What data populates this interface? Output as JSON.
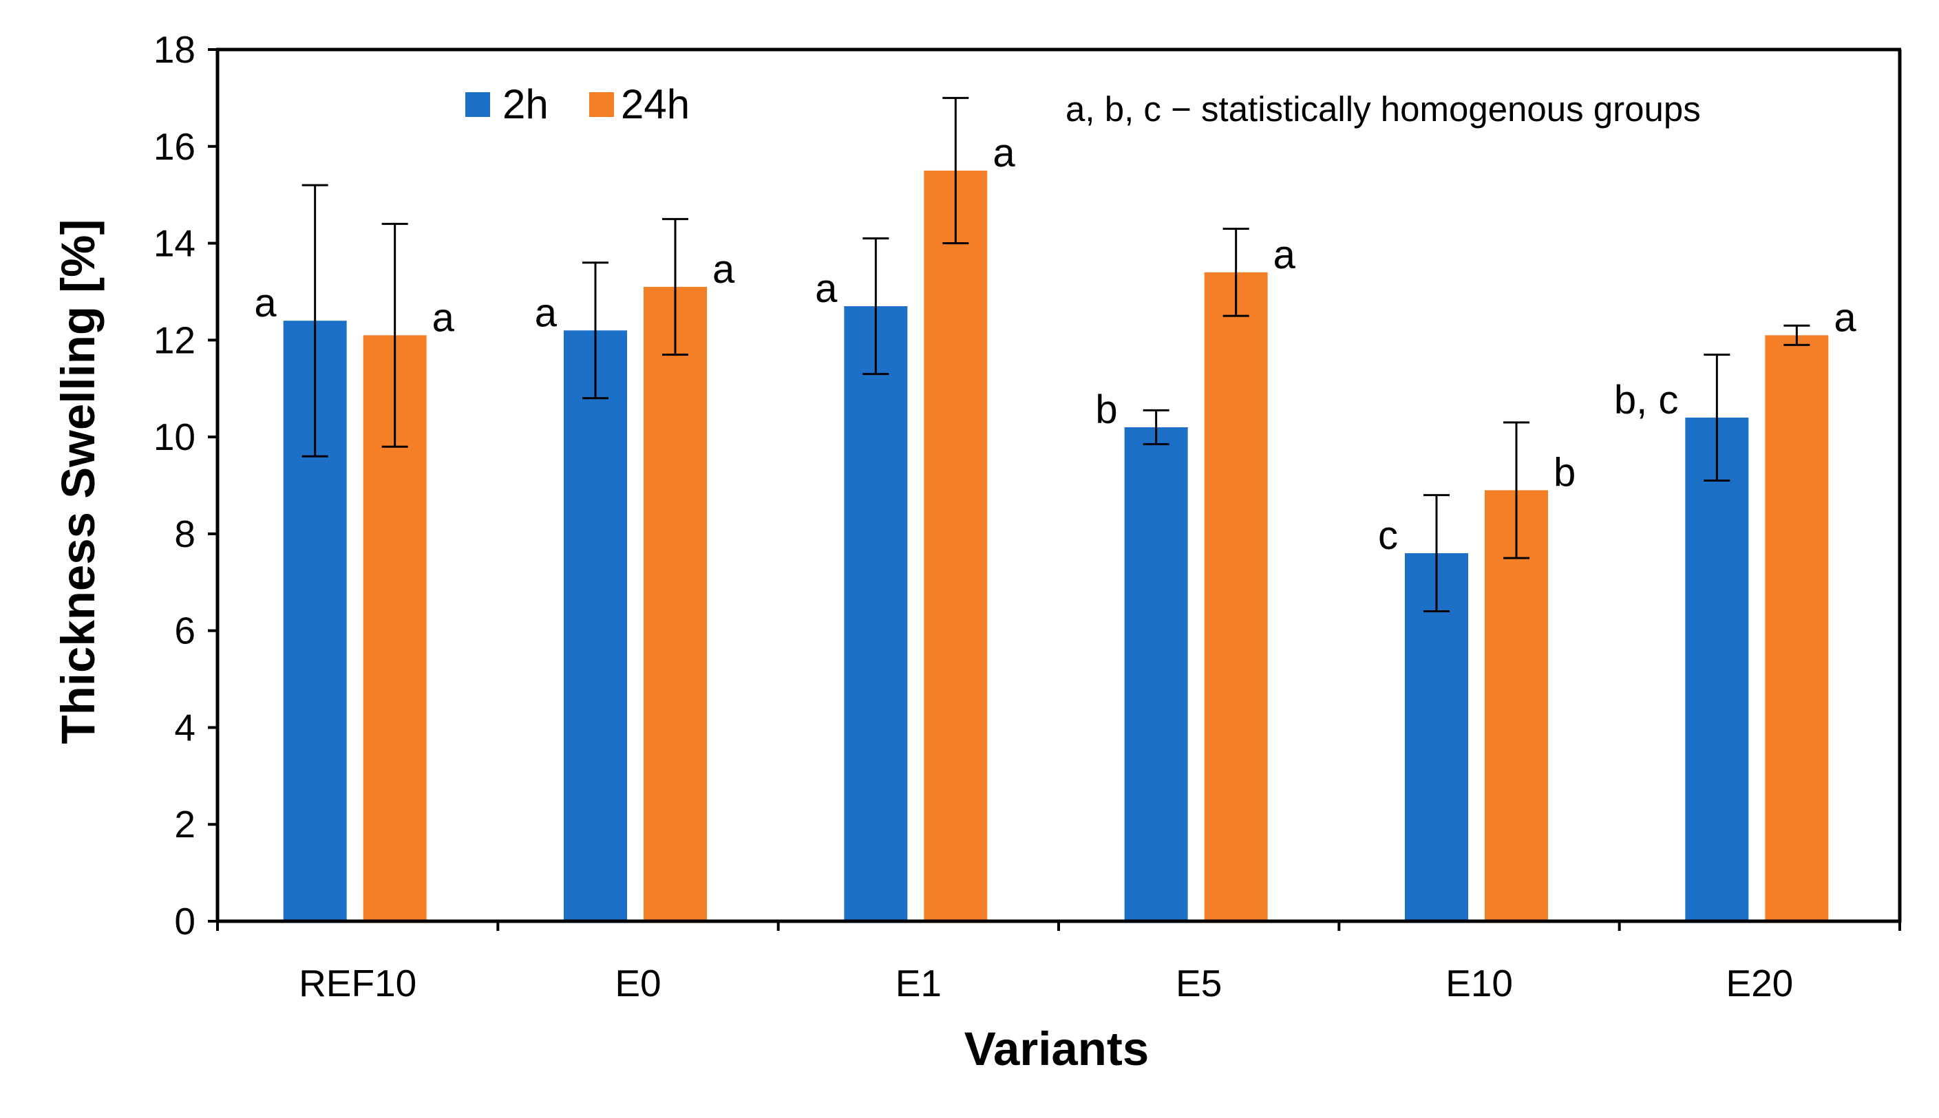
{
  "chart_data": {
    "type": "bar",
    "title": "",
    "xlabel": "Variants",
    "ylabel": "Thickness Swelling  [%]",
    "ylim": [
      0,
      18
    ],
    "yticks": [
      0,
      2,
      4,
      6,
      8,
      10,
      12,
      14,
      16,
      18
    ],
    "grid": false,
    "legend_position": "top-left",
    "categories": [
      "REF10",
      "E0",
      "E1",
      "E5",
      "E10",
      "E20"
    ],
    "series": [
      {
        "name": "2h",
        "color": "#1C70C8",
        "values": [
          12.4,
          12.2,
          12.7,
          10.2,
          7.6,
          10.4
        ],
        "error": [
          2.8,
          1.4,
          1.4,
          0.35,
          1.2,
          1.3
        ],
        "groups": [
          "a",
          "a",
          "a",
          "b",
          "c",
          "b, c"
        ]
      },
      {
        "name": "24h",
        "color": "#F57F27",
        "values": [
          12.1,
          13.1,
          15.5,
          13.4,
          8.9,
          12.1
        ],
        "error": [
          2.3,
          1.4,
          1.5,
          0.9,
          1.4,
          0.2
        ],
        "groups": [
          "a",
          "a",
          "a",
          "a",
          "b",
          "a"
        ]
      }
    ],
    "annotation": "a, b, c − statistically  homogenous  groups"
  }
}
